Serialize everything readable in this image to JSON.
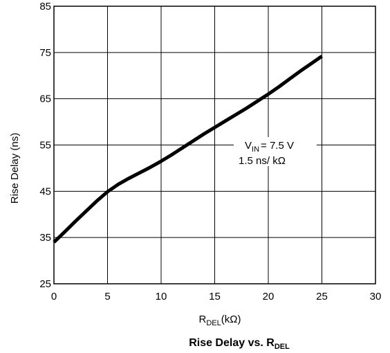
{
  "chart_data": {
    "type": "line",
    "title": "Rise Delay vs. R",
    "title_subscript": "DEL",
    "xlabel": "R",
    "xlabel_subscript": "DEL",
    "xlabel_unit": "(kΩ)",
    "ylabel": "Rise Delay (ns)",
    "xlim": [
      0,
      30
    ],
    "ylim": [
      25,
      85
    ],
    "xticks": [
      0,
      5,
      10,
      15,
      20,
      25,
      30
    ],
    "yticks": [
      25,
      35,
      45,
      55,
      65,
      75,
      85
    ],
    "grid": true,
    "annotation": {
      "line1_prefix": "V",
      "line1_sub": "IN",
      "line1_suffix": "= 7.5 V",
      "line2": "1.5 ns/ kΩ"
    },
    "series": [
      {
        "x": [
          0,
          1,
          2,
          3,
          4,
          5,
          6,
          7,
          8,
          9,
          10,
          11,
          12,
          13,
          14,
          15,
          16,
          17,
          18,
          19,
          20,
          21,
          22,
          23,
          24,
          25
        ],
        "y": [
          34,
          36.2,
          38.5,
          40.7,
          42.9,
          44.9,
          46.5,
          47.8,
          49.0,
          50.2,
          51.5,
          52.9,
          54.4,
          55.9,
          57.4,
          58.8,
          60.2,
          61.6,
          63.0,
          64.5,
          66.0,
          67.6,
          69.3,
          71.0,
          72.6,
          74.2
        ]
      }
    ]
  }
}
